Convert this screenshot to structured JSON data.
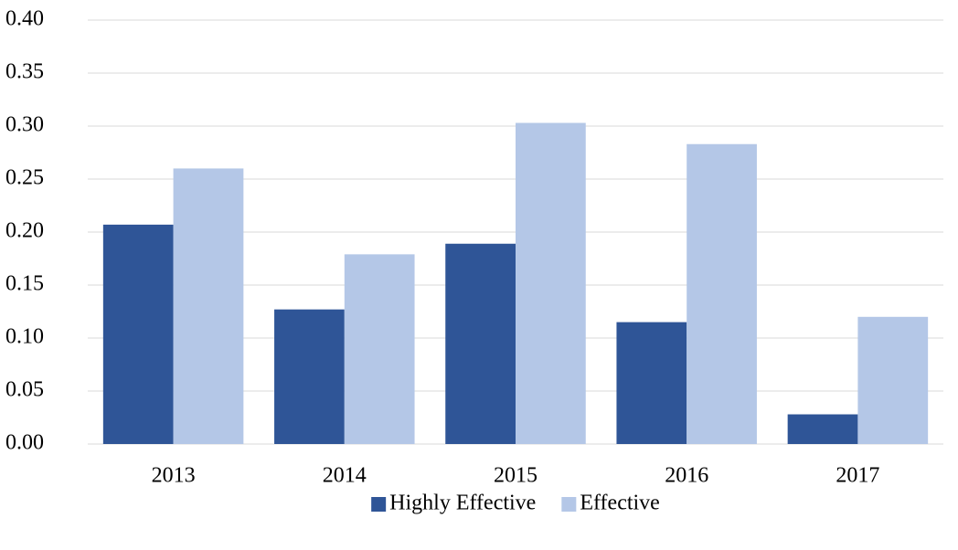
{
  "chart_data": {
    "type": "bar",
    "categories": [
      "2013",
      "2014",
      "2015",
      "2016",
      "2017"
    ],
    "series": [
      {
        "name": "Highly Effective",
        "color": "#2f5597",
        "values": [
          0.207,
          0.127,
          0.189,
          0.115,
          0.028
        ]
      },
      {
        "name": "Effective",
        "color": "#b4c7e7",
        "values": [
          0.26,
          0.179,
          0.303,
          0.283,
          0.12
        ]
      }
    ],
    "ylim": [
      0,
      0.4
    ],
    "yticks": [
      {
        "value": 0,
        "label": "0.00"
      },
      0.05,
      {
        "value": 0.1,
        "label": "0.10"
      },
      0.15,
      {
        "value": 0.2,
        "label": "0.20"
      },
      0.25,
      {
        "value": 0.3,
        "label": "0.30"
      },
      0.35,
      {
        "value": 0.4,
        "label": "0.40"
      }
    ],
    "grid": true,
    "legend": "bottom"
  }
}
